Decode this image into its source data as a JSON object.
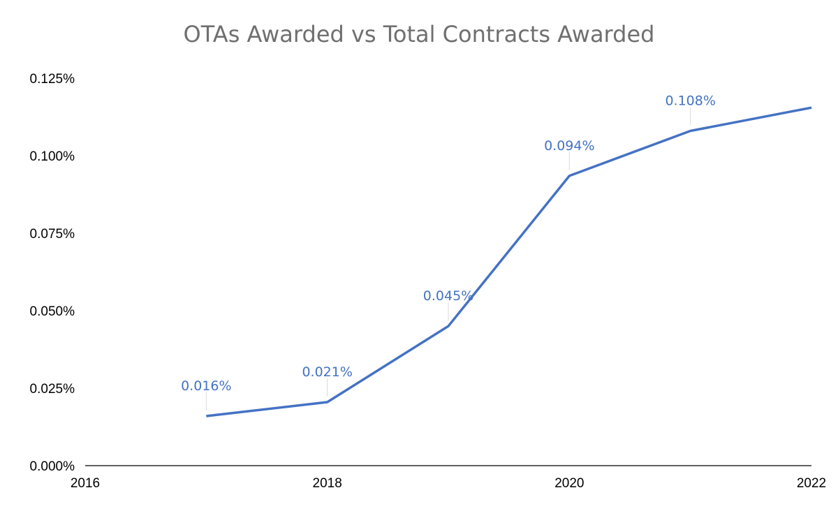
{
  "chart_data": {
    "type": "line",
    "title": "OTAs Awarded vs Total Contracts Awarded",
    "xlabel": "",
    "ylabel": "",
    "xlim": [
      2016,
      2022
    ],
    "ylim": [
      0,
      0.125
    ],
    "x_ticks": [
      2016,
      2018,
      2020,
      2022
    ],
    "y_ticks": [
      0,
      0.025,
      0.05,
      0.075,
      0.1,
      0.125
    ],
    "y_tick_labels": [
      "0.000%",
      "0.025%",
      "0.050%",
      "0.075%",
      "0.100%",
      "0.125%"
    ],
    "grid": false,
    "legend": "none",
    "line_color": "#4472C4",
    "series": [
      {
        "x": [
          2017,
          2018,
          2019,
          2020,
          2021,
          2022
        ],
        "values": [
          0.016,
          0.0205,
          0.045,
          0.0935,
          0.108,
          0.1155
        ],
        "data_labels": [
          "0.016%",
          "0.021%",
          "0.045%",
          "0.094%",
          "0.108%",
          ""
        ]
      }
    ]
  }
}
